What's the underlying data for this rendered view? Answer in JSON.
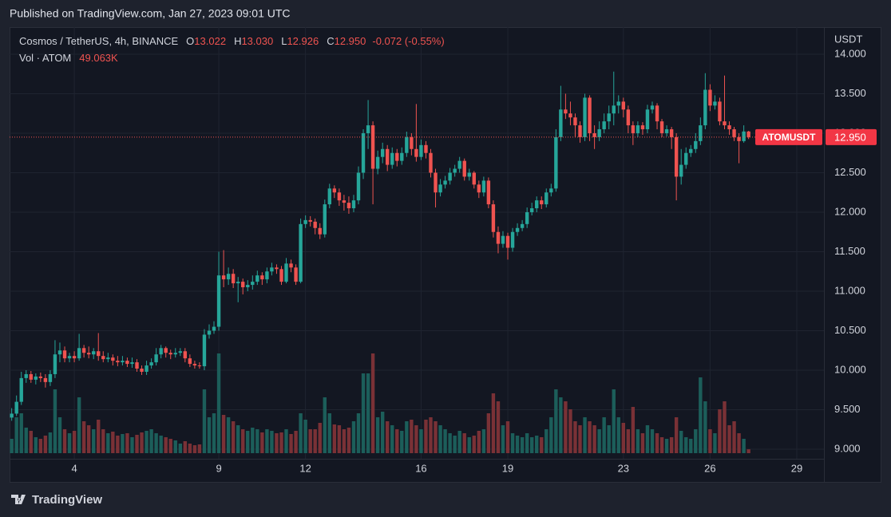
{
  "header": {
    "published": "Published on TradingView.com, Jan 27, 2023 09:01 UTC"
  },
  "footer": {
    "brand": "TradingView"
  },
  "chart_data": {
    "type": "candlestick",
    "symbol": "Cosmos / TetherUS, 4h, BINANCE",
    "ohlc_legend": [
      {
        "key": "O",
        "value": "13.022"
      },
      {
        "key": "H",
        "value": "13.030"
      },
      {
        "key": "L",
        "value": "12.926"
      },
      {
        "key": "C",
        "value": "12.950"
      }
    ],
    "change": "-0.072 (-0.55%)",
    "volume_name": "Vol · ATOM",
    "volume_label": "49.063K",
    "y_axis_label": "USDT",
    "last_price": {
      "symbol": "ATOMUSDT",
      "value": 12.95,
      "label": "12.950"
    },
    "up_color": "#26a69a",
    "down_color": "#ef5350",
    "volume_up_color": "#1c5e5a",
    "volume_down_color": "#7a3136",
    "grid": true,
    "xlim": [
      1.76,
      29.94
    ],
    "ylim": [
      8.586,
      14.343
    ],
    "xticks": [
      4,
      9,
      12,
      16,
      19,
      23,
      26,
      29
    ],
    "yticks": [
      {
        "value": 9,
        "label": "9.000"
      },
      {
        "value": 9.5,
        "label": "9.500"
      },
      {
        "value": 10,
        "label": "10.000"
      },
      {
        "value": 10.5,
        "label": "10.500"
      },
      {
        "value": 11,
        "label": "11.000"
      },
      {
        "value": 11.5,
        "label": "11.500"
      },
      {
        "value": 12,
        "label": "12.000"
      },
      {
        "value": 12.5,
        "label": "12.500"
      },
      {
        "value": 13,
        "label": "13.000"
      },
      {
        "value": 13.5,
        "label": "13.500"
      },
      {
        "value": 14,
        "label": "14.000"
      }
    ],
    "x": [
      1.833,
      2,
      2.167,
      2.333,
      2.5,
      2.667,
      2.833,
      3,
      3.167,
      3.333,
      3.5,
      3.667,
      3.833,
      4,
      4.167,
      4.333,
      4.5,
      4.667,
      4.833,
      5,
      5.167,
      5.333,
      5.5,
      5.667,
      5.833,
      6,
      6.167,
      6.333,
      6.5,
      6.667,
      6.833,
      7,
      7.167,
      7.333,
      7.5,
      7.667,
      7.833,
      8,
      8.167,
      8.333,
      8.5,
      8.667,
      8.833,
      9,
      9.167,
      9.333,
      9.5,
      9.667,
      9.833,
      10,
      10.167,
      10.333,
      10.5,
      10.667,
      10.833,
      11,
      11.167,
      11.333,
      11.5,
      11.667,
      11.833,
      12,
      12.167,
      12.333,
      12.5,
      12.667,
      12.833,
      13,
      13.167,
      13.333,
      13.5,
      13.667,
      13.833,
      14,
      14.167,
      14.333,
      14.5,
      14.667,
      14.833,
      15,
      15.167,
      15.333,
      15.5,
      15.667,
      15.833,
      16,
      16.167,
      16.333,
      16.5,
      16.667,
      16.833,
      17,
      17.167,
      17.333,
      17.5,
      17.667,
      17.833,
      18,
      18.167,
      18.333,
      18.5,
      18.667,
      18.833,
      19,
      19.167,
      19.333,
      19.5,
      19.667,
      19.833,
      20,
      20.167,
      20.333,
      20.5,
      20.667,
      20.833,
      21,
      21.167,
      21.333,
      21.5,
      21.667,
      21.833,
      22,
      22.167,
      22.333,
      22.5,
      22.667,
      22.833,
      23,
      23.167,
      23.333,
      23.5,
      23.667,
      23.833,
      24,
      24.167,
      24.333,
      24.5,
      24.667,
      24.833,
      25,
      25.167,
      25.333,
      25.5,
      25.667,
      25.833,
      26,
      26.167,
      26.333,
      26.5,
      26.667,
      26.833,
      27,
      27.167,
      27.333
    ],
    "open": [
      9.4,
      9.45,
      9.6,
      9.9,
      9.95,
      9.88,
      9.92,
      9.9,
      9.85,
      9.95,
      10.2,
      10.25,
      10.15,
      10.18,
      10.15,
      10.28,
      10.22,
      10.2,
      10.24,
      10.18,
      10.14,
      10.16,
      10.12,
      10.1,
      10.12,
      10.08,
      10.1,
      10.02,
      9.98,
      10.06,
      10.1,
      10.2,
      10.28,
      10.22,
      10.2,
      10.22,
      10.24,
      10.15,
      10.08,
      10.06,
      10.05,
      10.45,
      10.5,
      10.55,
      11.2,
      11.15,
      11.22,
      11.1,
      11.12,
      11.05,
      11.08,
      11.12,
      11.2,
      11.15,
      11.25,
      11.3,
      11.28,
      11.12,
      11.35,
      11.3,
      11.12,
      11.85,
      11.9,
      11.88,
      11.8,
      11.72,
      12.1,
      12.3,
      12.25,
      12.15,
      12.12,
      12.05,
      12.15,
      12.5,
      13.0,
      13.1,
      12.55,
      12.7,
      12.8,
      12.6,
      12.75,
      12.65,
      12.75,
      12.95,
      12.8,
      12.7,
      12.85,
      12.75,
      12.5,
      12.25,
      12.35,
      12.4,
      12.5,
      12.55,
      12.65,
      12.45,
      12.5,
      12.35,
      12.25,
      12.4,
      12.1,
      11.75,
      11.6,
      11.7,
      11.55,
      11.75,
      11.8,
      11.85,
      12.0,
      12.05,
      12.15,
      12.1,
      12.25,
      12.3,
      12.95,
      13.3,
      13.25,
      13.2,
      13.1,
      12.95,
      13.45,
      13.0,
      12.95,
      13.05,
      13.15,
      13.25,
      13.35,
      13.4,
      13.3,
      13.1,
      13.0,
      13.1,
      13.05,
      13.3,
      13.35,
      13.15,
      13.0,
      13.05,
      12.95,
      12.45,
      12.6,
      12.75,
      12.8,
      12.9,
      13.1,
      13.55,
      13.35,
      13.4,
      13.15,
      13.1,
      13.05,
      12.95,
      12.9,
      13.022
    ],
    "high": [
      9.52,
      9.68,
      9.98,
      10.0,
      9.99,
      9.96,
      9.97,
      9.95,
      10.0,
      10.38,
      10.35,
      10.3,
      10.22,
      10.24,
      10.46,
      10.32,
      10.3,
      10.28,
      10.47,
      10.24,
      10.22,
      10.2,
      10.18,
      10.18,
      10.16,
      10.16,
      10.14,
      10.06,
      10.12,
      10.15,
      10.28,
      10.32,
      10.3,
      10.26,
      10.28,
      10.28,
      10.28,
      10.2,
      10.12,
      10.1,
      10.52,
      10.58,
      10.62,
      11.5,
      11.52,
      11.3,
      11.28,
      11.18,
      11.16,
      11.14,
      11.2,
      11.26,
      11.24,
      11.3,
      11.36,
      11.34,
      11.32,
      11.42,
      11.4,
      11.34,
      11.92,
      11.96,
      11.95,
      11.92,
      11.86,
      12.16,
      12.36,
      12.34,
      12.3,
      12.22,
      12.2,
      12.22,
      12.58,
      13.05,
      13.42,
      13.15,
      12.78,
      12.88,
      12.85,
      12.82,
      12.8,
      12.82,
      13.02,
      13.0,
      13.37,
      12.92,
      12.9,
      12.8,
      12.55,
      12.42,
      12.46,
      12.56,
      12.6,
      12.7,
      12.68,
      12.55,
      12.52,
      12.4,
      12.45,
      12.44,
      12.15,
      11.82,
      11.76,
      11.74,
      11.8,
      11.86,
      11.9,
      12.06,
      12.12,
      12.2,
      12.2,
      12.3,
      12.36,
      13.05,
      13.6,
      13.5,
      13.4,
      13.25,
      13.15,
      13.5,
      13.48,
      13.1,
      13.15,
      13.25,
      13.35,
      13.78,
      13.48,
      13.45,
      13.35,
      13.15,
      13.15,
      13.14,
      13.36,
      13.4,
      13.38,
      13.18,
      13.1,
      13.08,
      13.0,
      12.8,
      12.82,
      12.85,
      13.0,
      13.2,
      13.76,
      13.62,
      13.48,
      13.45,
      13.73,
      13.15,
      13.08,
      13.0,
      13.1,
      13.03
    ],
    "low": [
      9.36,
      9.42,
      9.56,
      9.84,
      9.84,
      9.82,
      9.85,
      9.78,
      9.8,
      9.9,
      10.1,
      10.1,
      10.1,
      10.1,
      10.12,
      10.16,
      10.15,
      10.14,
      10.12,
      10.1,
      10.1,
      10.06,
      10.05,
      10.06,
      10.04,
      10.03,
      9.98,
      9.94,
      9.94,
      10.02,
      10.06,
      10.15,
      10.16,
      10.14,
      10.16,
      10.18,
      10.1,
      10.04,
      10.02,
      10.02,
      10.0,
      10.4,
      10.46,
      10.5,
      11.05,
      11.08,
      11.04,
      10.86,
      10.96,
      11.0,
      11.02,
      11.08,
      11.08,
      11.1,
      11.2,
      11.22,
      11.08,
      11.1,
      11.24,
      11.08,
      11.1,
      11.8,
      11.82,
      11.72,
      11.66,
      11.68,
      12.05,
      12.18,
      12.08,
      12.02,
      11.98,
      12.0,
      12.1,
      12.42,
      12.8,
      12.1,
      12.48,
      12.62,
      12.52,
      12.55,
      12.58,
      12.6,
      12.7,
      12.72,
      12.64,
      12.66,
      12.68,
      12.44,
      12.06,
      12.2,
      12.3,
      12.35,
      12.45,
      12.5,
      12.4,
      12.4,
      12.3,
      12.18,
      12.2,
      12.05,
      11.68,
      11.48,
      11.55,
      11.4,
      11.5,
      11.7,
      11.76,
      11.8,
      11.96,
      12.0,
      12.04,
      12.06,
      12.2,
      12.26,
      12.9,
      13.18,
      13.1,
      12.95,
      12.88,
      12.9,
      12.9,
      12.8,
      12.9,
      13.0,
      13.05,
      13.1,
      13.25,
      13.2,
      13.0,
      12.85,
      12.95,
      12.98,
      13.0,
      13.25,
      13.05,
      12.95,
      12.96,
      12.8,
      12.15,
      12.35,
      12.55,
      12.7,
      12.75,
      12.85,
      13.05,
      13.28,
      13.3,
      13.1,
      13.05,
      12.98,
      12.9,
      12.62,
      12.88,
      12.926
    ],
    "close": [
      9.45,
      9.6,
      9.9,
      9.95,
      9.88,
      9.92,
      9.9,
      9.85,
      9.95,
      10.2,
      10.25,
      10.15,
      10.18,
      10.15,
      10.28,
      10.22,
      10.2,
      10.24,
      10.18,
      10.14,
      10.16,
      10.12,
      10.1,
      10.12,
      10.08,
      10.1,
      10.02,
      9.98,
      10.06,
      10.1,
      10.2,
      10.28,
      10.22,
      10.2,
      10.22,
      10.24,
      10.15,
      10.08,
      10.06,
      10.05,
      10.45,
      10.5,
      10.55,
      11.2,
      11.15,
      11.22,
      11.1,
      11.12,
      11.05,
      11.08,
      11.12,
      11.2,
      11.15,
      11.25,
      11.3,
      11.28,
      11.12,
      11.35,
      11.3,
      11.12,
      11.85,
      11.9,
      11.88,
      11.8,
      11.72,
      12.1,
      12.3,
      12.25,
      12.15,
      12.12,
      12.05,
      12.15,
      12.5,
      13.0,
      13.1,
      12.55,
      12.7,
      12.8,
      12.6,
      12.75,
      12.65,
      12.75,
      12.95,
      12.8,
      12.7,
      12.85,
      12.75,
      12.5,
      12.25,
      12.35,
      12.4,
      12.5,
      12.55,
      12.65,
      12.45,
      12.5,
      12.35,
      12.25,
      12.4,
      12.1,
      11.75,
      11.6,
      11.7,
      11.55,
      11.75,
      11.8,
      11.85,
      12.0,
      12.05,
      12.15,
      12.1,
      12.25,
      12.3,
      12.95,
      13.3,
      13.25,
      13.2,
      13.1,
      12.95,
      13.45,
      13.0,
      12.95,
      13.05,
      13.15,
      13.25,
      13.35,
      13.4,
      13.3,
      13.1,
      13.0,
      13.1,
      13.05,
      13.3,
      13.35,
      13.15,
      13.0,
      13.05,
      12.95,
      12.45,
      12.6,
      12.75,
      12.8,
      12.9,
      13.1,
      13.55,
      13.35,
      13.4,
      13.15,
      13.1,
      13.05,
      12.95,
      12.9,
      13.022,
      12.95
    ],
    "volume": [
      180000,
      450000,
      500000,
      320000,
      280000,
      200000,
      180000,
      220000,
      260000,
      800000,
      450000,
      300000,
      250000,
      280000,
      700000,
      400000,
      350000,
      300000,
      420000,
      300000,
      250000,
      270000,
      220000,
      240000,
      250000,
      200000,
      230000,
      260000,
      280000,
      300000,
      250000,
      220000,
      200000,
      180000,
      160000,
      120000,
      150000,
      120000,
      100000,
      110000,
      800000,
      450000,
      500000,
      1250000,
      480000,
      450000,
      400000,
      350000,
      300000,
      280000,
      320000,
      300000,
      260000,
      300000,
      280000,
      250000,
      260000,
      300000,
      240000,
      280000,
      500000,
      420000,
      300000,
      300000,
      380000,
      700000,
      500000,
      360000,
      350000,
      300000,
      320000,
      400000,
      500000,
      1000000,
      1000000,
      1250000,
      450000,
      520000,
      400000,
      350000,
      300000,
      280000,
      400000,
      420000,
      350000,
      300000,
      420000,
      450000,
      400000,
      350000,
      300000,
      250000,
      220000,
      280000,
      250000,
      200000,
      220000,
      280000,
      300000,
      500000,
      750000,
      650000,
      350000,
      400000,
      250000,
      220000,
      200000,
      250000,
      200000,
      220000,
      200000,
      300000,
      450000,
      800000,
      700000,
      650000,
      550000,
      400000,
      350000,
      450000,
      400000,
      350000,
      300000,
      450000,
      350000,
      800000,
      450000,
      380000,
      300000,
      580000,
      300000,
      250000,
      350000,
      300000,
      250000,
      200000,
      180000,
      200000,
      450000,
      280000,
      200000,
      180000,
      300000,
      950000,
      650000,
      300000,
      250000,
      550000,
      650000,
      350000,
      400000,
      250000,
      180000,
      49063
    ]
  }
}
